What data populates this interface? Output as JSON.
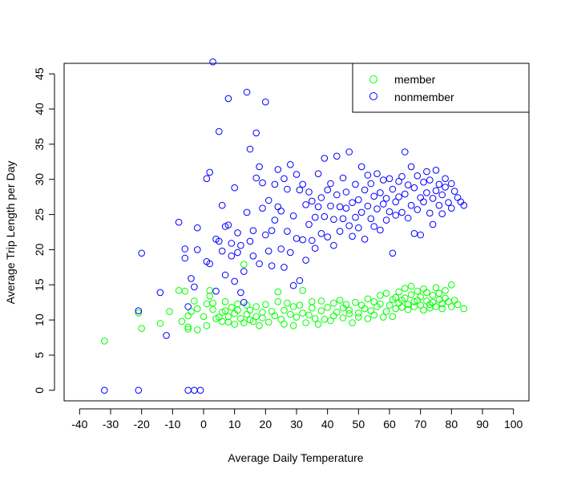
{
  "chart_data": {
    "type": "scatter",
    "title": "",
    "xlabel": "Average Daily Temperature",
    "ylabel": "Average Trip Length per Day",
    "xlim": [
      -45,
      105
    ],
    "ylim": [
      -1.5,
      46.5
    ],
    "x_ticks": [
      -40,
      -30,
      -20,
      -10,
      0,
      10,
      20,
      30,
      40,
      50,
      60,
      70,
      80,
      90,
      100
    ],
    "y_ticks": [
      0,
      5,
      10,
      15,
      20,
      25,
      30,
      35,
      40,
      45
    ],
    "grid": false,
    "legend_position": "top-right",
    "series": [
      {
        "name": "member",
        "color": "#00ff00",
        "marker": "open-circle",
        "points": [
          [
            -32,
            7
          ],
          [
            -21,
            11
          ],
          [
            -20,
            8.8
          ],
          [
            -14,
            9.5
          ],
          [
            -11,
            11.2
          ],
          [
            -8,
            14.2
          ],
          [
            -7,
            9.8
          ],
          [
            -6,
            14.1
          ],
          [
            -5,
            10.6
          ],
          [
            -5,
            9
          ],
          [
            -5,
            8.7
          ],
          [
            -4,
            11.2
          ],
          [
            -3,
            12.7
          ],
          [
            -2,
            11.6
          ],
          [
            -2,
            8.6
          ],
          [
            0,
            10.5
          ],
          [
            1,
            9.2
          ],
          [
            1,
            12.3
          ],
          [
            2,
            14.2
          ],
          [
            2,
            13.4
          ],
          [
            3,
            12.4
          ],
          [
            3,
            11.5
          ],
          [
            4,
            10.2
          ],
          [
            5,
            10.4
          ],
          [
            6,
            11.1
          ],
          [
            6,
            9.8
          ],
          [
            7,
            12.6
          ],
          [
            7,
            11.3
          ],
          [
            8,
            10.5
          ],
          [
            8,
            9.7
          ],
          [
            9,
            11.8
          ],
          [
            10,
            10.9
          ],
          [
            10,
            9.4
          ],
          [
            11,
            11.4
          ],
          [
            11,
            12.3
          ],
          [
            12,
            10.2
          ],
          [
            13,
            9.6
          ],
          [
            13,
            17.9
          ],
          [
            14,
            10.8
          ],
          [
            14,
            12.1
          ],
          [
            15,
            11.4
          ],
          [
            15,
            10
          ],
          [
            16,
            9.8
          ],
          [
            17,
            11.9
          ],
          [
            17,
            10.5
          ],
          [
            18,
            9.2
          ],
          [
            19,
            11.1
          ],
          [
            19,
            10.3
          ],
          [
            20,
            12.2
          ],
          [
            21,
            9.7
          ],
          [
            22,
            11.2
          ],
          [
            23,
            10.6
          ],
          [
            24,
            12.6
          ],
          [
            24,
            14
          ],
          [
            25,
            10.1
          ],
          [
            26,
            11.4
          ],
          [
            26,
            9.4
          ],
          [
            27,
            12.4
          ],
          [
            28,
            10.8
          ],
          [
            29,
            11.9
          ],
          [
            29,
            9.2
          ],
          [
            30,
            10.4
          ],
          [
            31,
            12.1
          ],
          [
            32,
            11
          ],
          [
            32,
            14.2
          ],
          [
            33,
            9.6
          ],
          [
            34,
            10.7
          ],
          [
            35,
            11.7
          ],
          [
            35,
            12.6
          ],
          [
            36,
            10.2
          ],
          [
            37,
            9.4
          ],
          [
            38,
            11.3
          ],
          [
            38,
            12.7
          ],
          [
            39,
            10.1
          ],
          [
            40,
            11.8
          ],
          [
            41,
            9.9
          ],
          [
            42,
            12.4
          ],
          [
            42,
            10.6
          ],
          [
            43,
            11.1
          ],
          [
            44,
            12.8
          ],
          [
            45,
            10.3
          ],
          [
            45,
            11.7
          ],
          [
            46,
            12.2
          ],
          [
            47,
            10.9
          ],
          [
            47,
            11.4
          ],
          [
            48,
            9.6
          ],
          [
            49,
            12.5
          ],
          [
            50,
            11
          ],
          [
            50,
            10.4
          ],
          [
            51,
            12.1
          ],
          [
            52,
            11.6
          ],
          [
            53,
            10.2
          ],
          [
            53,
            13
          ],
          [
            54,
            11.3
          ],
          [
            55,
            12.6
          ],
          [
            55,
            10.7
          ],
          [
            56,
            11.9
          ],
          [
            57,
            13.5
          ],
          [
            57,
            12.3
          ],
          [
            58,
            10.4
          ],
          [
            59,
            11.2
          ],
          [
            59,
            13.8
          ],
          [
            60,
            12.1
          ],
          [
            61,
            10.5
          ],
          [
            61,
            12.9
          ],
          [
            62,
            11.6
          ],
          [
            62,
            13.2
          ],
          [
            63,
            12.4
          ],
          [
            63,
            14
          ],
          [
            64,
            11.8
          ],
          [
            64,
            12.8
          ],
          [
            65,
            14.5
          ],
          [
            65,
            13.1
          ],
          [
            66,
            12.2
          ],
          [
            66,
            11.5
          ],
          [
            67,
            14.8
          ],
          [
            67,
            13.6
          ],
          [
            68,
            12.6
          ],
          [
            68,
            11.9
          ],
          [
            69,
            14.1
          ],
          [
            69,
            12.8
          ],
          [
            70,
            13.3
          ],
          [
            70,
            12.1
          ],
          [
            71,
            11.4
          ],
          [
            71,
            14.4
          ],
          [
            72,
            12.7
          ],
          [
            72,
            13.9
          ],
          [
            73,
            12.2
          ],
          [
            73,
            11.7
          ],
          [
            74,
            13.5
          ],
          [
            74,
            12.5
          ],
          [
            75,
            14.6
          ],
          [
            75,
            11.9
          ],
          [
            76,
            12.9
          ],
          [
            76,
            13.8
          ],
          [
            77,
            12.3
          ],
          [
            77,
            11.6
          ],
          [
            78,
            13.1
          ],
          [
            78,
            14.2
          ],
          [
            79,
            12.6
          ],
          [
            80,
            11.9
          ],
          [
            80,
            15
          ],
          [
            81,
            12.8
          ],
          [
            82,
            12.2
          ],
          [
            84,
            11.6
          ]
        ]
      },
      {
        "name": "nonmember",
        "color": "#0000ff",
        "marker": "open-circle",
        "points": [
          [
            -32,
            0
          ],
          [
            -21,
            0
          ],
          [
            -21,
            11.3
          ],
          [
            -20,
            19.5
          ],
          [
            -14,
            13.9
          ],
          [
            -12,
            7.8
          ],
          [
            -8,
            23.9
          ],
          [
            -6,
            20.1
          ],
          [
            -6,
            18.8
          ],
          [
            -5,
            0
          ],
          [
            -5,
            11.9
          ],
          [
            -4,
            15.9
          ],
          [
            -3,
            14.7
          ],
          [
            -3,
            0
          ],
          [
            -2,
            23.1
          ],
          [
            -2,
            20
          ],
          [
            -1,
            0
          ],
          [
            1,
            18.3
          ],
          [
            1,
            30.1
          ],
          [
            2,
            31
          ],
          [
            2,
            18
          ],
          [
            3,
            46.7
          ],
          [
            4,
            21.5
          ],
          [
            4,
            14.1
          ],
          [
            5,
            36.8
          ],
          [
            5,
            21.2
          ],
          [
            6,
            26.3
          ],
          [
            6,
            19.8
          ],
          [
            7,
            23.3
          ],
          [
            7,
            16.4
          ],
          [
            8,
            41.5
          ],
          [
            8,
            23.5
          ],
          [
            9,
            20.9
          ],
          [
            9,
            19.1
          ],
          [
            10,
            28.8
          ],
          [
            10,
            15.5
          ],
          [
            11,
            19.6
          ],
          [
            11,
            22.4
          ],
          [
            12,
            20.6
          ],
          [
            12,
            13.9
          ],
          [
            13,
            12.5
          ],
          [
            13,
            16.9
          ],
          [
            14,
            42.4
          ],
          [
            14,
            25.3
          ],
          [
            15,
            21.2
          ],
          [
            15,
            34.3
          ],
          [
            16,
            22.7
          ],
          [
            16,
            19.1
          ],
          [
            17,
            36.6
          ],
          [
            17,
            30.2
          ],
          [
            18,
            31.8
          ],
          [
            18,
            18
          ],
          [
            19,
            25.9
          ],
          [
            19,
            29.5
          ],
          [
            20,
            41
          ],
          [
            20,
            22.1
          ],
          [
            21,
            27
          ],
          [
            21,
            19.8
          ],
          [
            22,
            22.7
          ],
          [
            22,
            17.7
          ],
          [
            23,
            29.3
          ],
          [
            23,
            24.2
          ],
          [
            24,
            31.4
          ],
          [
            24,
            26.1
          ],
          [
            25,
            20.1
          ],
          [
            25,
            25.5
          ],
          [
            26,
            30.1
          ],
          [
            26,
            17.5
          ],
          [
            27,
            28.6
          ],
          [
            27,
            22.6
          ],
          [
            28,
            32.1
          ],
          [
            28,
            19.6
          ],
          [
            29,
            24.8
          ],
          [
            29,
            14.9
          ],
          [
            30,
            30.7
          ],
          [
            30,
            21.6
          ],
          [
            31,
            15.6
          ],
          [
            31,
            28.5
          ],
          [
            32,
            29.3
          ],
          [
            32,
            21.4
          ],
          [
            33,
            26.4
          ],
          [
            33,
            18.5
          ],
          [
            34,
            28.2
          ],
          [
            34,
            23.6
          ],
          [
            35,
            21.3
          ],
          [
            35,
            26.9
          ],
          [
            36,
            24.6
          ],
          [
            36,
            20.2
          ],
          [
            37,
            30.8
          ],
          [
            37,
            26.1
          ],
          [
            38,
            22.3
          ],
          [
            38,
            27.4
          ],
          [
            39,
            33
          ],
          [
            39,
            24.7
          ],
          [
            40,
            28.5
          ],
          [
            40,
            21.8
          ],
          [
            41,
            26.2
          ],
          [
            41,
            29.4
          ],
          [
            42,
            24.3
          ],
          [
            42,
            20.6
          ],
          [
            43,
            33.3
          ],
          [
            43,
            27.8
          ],
          [
            44,
            22.6
          ],
          [
            44,
            26.1
          ],
          [
            45,
            30.2
          ],
          [
            45,
            24.4
          ],
          [
            46,
            25.9
          ],
          [
            46,
            28.2
          ],
          [
            47,
            23.4
          ],
          [
            47,
            33.9
          ],
          [
            48,
            26.7
          ],
          [
            48,
            21.9
          ],
          [
            49,
            29.3
          ],
          [
            49,
            24.6
          ],
          [
            50,
            27.1
          ],
          [
            50,
            23.1
          ],
          [
            51,
            25.3
          ],
          [
            51,
            31.8
          ],
          [
            52,
            28.5
          ],
          [
            52,
            21.5
          ],
          [
            53,
            30.6
          ],
          [
            53,
            26.2
          ],
          [
            54,
            24.4
          ],
          [
            54,
            29.4
          ],
          [
            55,
            27.6
          ],
          [
            55,
            23.3
          ],
          [
            56,
            25.8
          ],
          [
            56,
            30.8
          ],
          [
            57,
            28.1
          ],
          [
            57,
            22.8
          ],
          [
            58,
            26.5
          ],
          [
            58,
            29.9
          ],
          [
            59,
            24.2
          ],
          [
            59,
            27.3
          ],
          [
            60,
            30.1
          ],
          [
            60,
            25.4
          ],
          [
            61,
            19.5
          ],
          [
            61,
            28.6
          ],
          [
            62,
            26.8
          ],
          [
            62,
            24.9
          ],
          [
            63,
            29.7
          ],
          [
            63,
            27.5
          ],
          [
            64,
            25.3
          ],
          [
            64,
            30.4
          ],
          [
            65,
            33.9
          ],
          [
            65,
            27.9
          ],
          [
            66,
            24.5
          ],
          [
            66,
            29.2
          ],
          [
            67,
            31.8
          ],
          [
            67,
            26.3
          ],
          [
            68,
            22.3
          ],
          [
            68,
            28.8
          ],
          [
            69,
            30.5
          ],
          [
            69,
            25.7
          ],
          [
            70,
            27.4
          ],
          [
            70,
            22.1
          ],
          [
            71,
            29.6
          ],
          [
            71,
            26.8
          ],
          [
            72,
            31.1
          ],
          [
            72,
            28.1
          ],
          [
            73,
            25.2
          ],
          [
            73,
            29.9
          ],
          [
            74,
            27.3
          ],
          [
            74,
            23.6
          ],
          [
            75,
            31.3
          ],
          [
            75,
            28.4
          ],
          [
            76,
            26.3
          ],
          [
            76,
            29.3
          ],
          [
            77,
            27.8
          ],
          [
            77,
            25.1
          ],
          [
            78,
            30.1
          ],
          [
            78,
            28.9
          ],
          [
            79,
            26.7
          ],
          [
            80,
            29.4
          ],
          [
            80,
            25.9
          ],
          [
            81,
            28.3
          ],
          [
            82,
            27.4
          ],
          [
            83,
            26.8
          ],
          [
            84,
            26.3
          ]
        ]
      }
    ]
  }
}
